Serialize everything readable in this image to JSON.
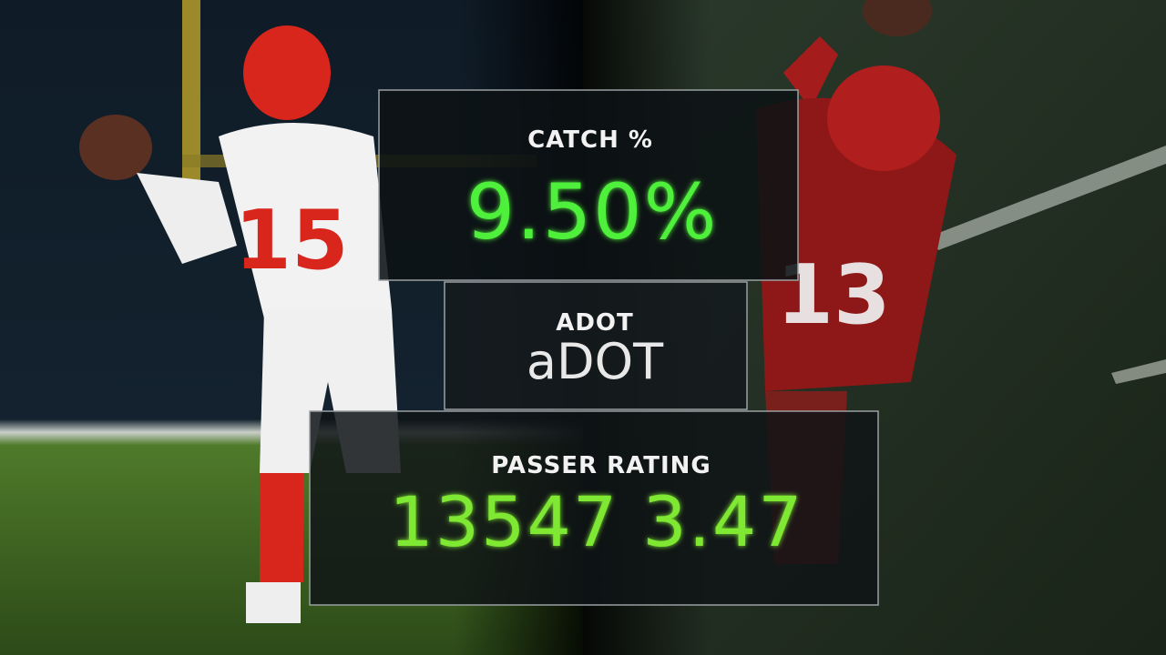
{
  "panels": [
    {
      "label": "CATCH %",
      "value": "9.50%"
    },
    {
      "label": "ADOT",
      "value": "aDOT"
    },
    {
      "label": "PASSER RATING",
      "value": "13547 3.47"
    }
  ],
  "players": [
    {
      "jersey": "15"
    },
    {
      "jersey": "13"
    }
  ]
}
